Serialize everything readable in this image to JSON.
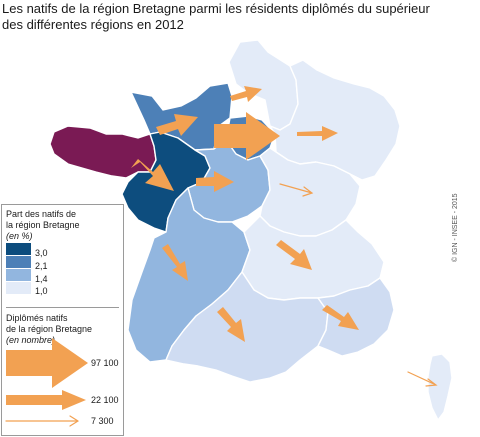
{
  "title_line1": "Les natifs de la région Bretagne parmi les résidents diplômés du supérieur",
  "title_line2": "des différentes régions en 2012",
  "legend": {
    "share_title_line1": "Part des natifs de",
    "share_title_line2": "la région Bretagne",
    "share_unit": "(en %)",
    "class_breaks": [
      "3,0",
      "2,1",
      "1,4",
      "1,0"
    ],
    "class_colors": [
      "#0d4d7e",
      "#4d80b7",
      "#92b6df",
      "#e3ebf8"
    ],
    "flow_title_line1": "Diplômés natifs",
    "flow_title_line2": "de la région Bretagne",
    "flow_unit": "(en nombre)",
    "flow_values": [
      "97 100",
      "22 100",
      "7 300"
    ]
  },
  "colors": {
    "bretagne": "#7a1a54",
    "arrow": "#f2a152",
    "class_1": "#0d4d7e",
    "class_2": "#4d80b7",
    "class_3": "#92b6df",
    "class_4": "#e3ebf8"
  },
  "copyright": "© IGN - INSEE - 2015"
}
